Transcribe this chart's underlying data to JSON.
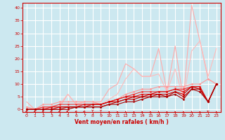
{
  "xlabel": "Vent moyen/en rafales ( km/h )",
  "background_color": "#cce8f0",
  "grid_color": "#ffffff",
  "xlim": [
    -0.5,
    23.5
  ],
  "ylim": [
    -1,
    42
  ],
  "yticks": [
    0,
    5,
    10,
    15,
    20,
    25,
    30,
    35,
    40
  ],
  "xticks": [
    0,
    1,
    2,
    3,
    4,
    5,
    6,
    7,
    8,
    9,
    10,
    11,
    12,
    13,
    14,
    15,
    16,
    17,
    18,
    19,
    20,
    21,
    22,
    23
  ],
  "lines": [
    {
      "x": [
        0,
        1,
        2,
        3,
        4,
        5,
        6,
        7,
        8,
        9,
        10,
        11,
        12,
        13,
        14,
        15,
        16,
        17,
        18,
        19,
        20,
        21,
        22,
        23
      ],
      "y": [
        3,
        0,
        1,
        0,
        1,
        6,
        2,
        3,
        3,
        3,
        8,
        10,
        18,
        16,
        13,
        13,
        24,
        7,
        25,
        4,
        41,
        27,
        12,
        10
      ],
      "color": "#ffaaaa",
      "lw": 0.8,
      "marker": null
    },
    {
      "x": [
        0,
        1,
        2,
        3,
        4,
        5,
        6,
        7,
        8,
        9,
        10,
        11,
        12,
        13,
        14,
        15,
        16,
        17,
        18,
        19,
        20,
        21,
        22,
        23
      ],
      "y": [
        1,
        0,
        0,
        1,
        2,
        6,
        2,
        3,
        3,
        2,
        4,
        6,
        12,
        16,
        13,
        13,
        14,
        7,
        16,
        4,
        23,
        27,
        13,
        24
      ],
      "color": "#ffbbbb",
      "lw": 0.8,
      "marker": null
    },
    {
      "x": [
        0,
        1,
        2,
        3,
        4,
        5,
        6,
        7,
        8,
        9,
        10,
        11,
        12,
        13,
        14,
        15,
        16,
        17,
        18,
        19,
        20,
        21,
        22,
        23
      ],
      "y": [
        1,
        0,
        2,
        2,
        3,
        3,
        3,
        3,
        3,
        2,
        3,
        4,
        6,
        7,
        8,
        8,
        9,
        9,
        9,
        9,
        10,
        10,
        12,
        10
      ],
      "color": "#ff9999",
      "lw": 0.8,
      "marker": "D",
      "markersize": 1.5
    },
    {
      "x": [
        0,
        1,
        2,
        3,
        4,
        5,
        6,
        7,
        8,
        9,
        10,
        11,
        12,
        13,
        14,
        15,
        16,
        17,
        18,
        19,
        20,
        21,
        22,
        23
      ],
      "y": [
        0,
        0,
        1,
        1,
        2,
        2,
        2,
        2,
        2,
        2,
        3,
        4,
        5,
        6,
        7,
        7,
        7,
        7,
        8,
        8,
        9,
        9,
        3,
        10
      ],
      "color": "#ee3333",
      "lw": 0.8,
      "marker": "D",
      "markersize": 1.5
    },
    {
      "x": [
        0,
        1,
        2,
        3,
        4,
        5,
        6,
        7,
        8,
        9,
        10,
        11,
        12,
        13,
        14,
        15,
        16,
        17,
        18,
        19,
        20,
        21,
        22,
        23
      ],
      "y": [
        0,
        0,
        0,
        1,
        1,
        1,
        1,
        2,
        2,
        2,
        3,
        4,
        5,
        5,
        6,
        6,
        7,
        7,
        8,
        7,
        9,
        9,
        3,
        10
      ],
      "color": "#dd1111",
      "lw": 0.8,
      "marker": "D",
      "markersize": 1.5
    },
    {
      "x": [
        0,
        1,
        2,
        3,
        4,
        5,
        6,
        7,
        8,
        9,
        10,
        11,
        12,
        13,
        14,
        15,
        16,
        17,
        18,
        19,
        20,
        21,
        22,
        23
      ],
      "y": [
        0,
        0,
        0,
        0,
        1,
        1,
        1,
        1,
        2,
        2,
        3,
        3,
        4,
        5,
        5,
        6,
        6,
        6,
        7,
        6,
        9,
        8,
        3,
        10
      ],
      "color": "#cc0000",
      "lw": 0.8,
      "marker": "D",
      "markersize": 1.5
    },
    {
      "x": [
        0,
        1,
        2,
        3,
        4,
        5,
        6,
        7,
        8,
        9,
        10,
        11,
        12,
        13,
        14,
        15,
        16,
        17,
        18,
        19,
        20,
        21,
        22,
        23
      ],
      "y": [
        0,
        0,
        0,
        0,
        0,
        1,
        1,
        1,
        1,
        1,
        2,
        3,
        4,
        4,
        5,
        5,
        6,
        5,
        7,
        5,
        8,
        8,
        3,
        10
      ],
      "color": "#bb0000",
      "lw": 0.8,
      "marker": "D",
      "markersize": 1.5
    },
    {
      "x": [
        0,
        1,
        2,
        3,
        4,
        5,
        6,
        7,
        8,
        9,
        10,
        11,
        12,
        13,
        14,
        15,
        16,
        17,
        18,
        19,
        20,
        21,
        22,
        23
      ],
      "y": [
        0,
        0,
        0,
        0,
        0,
        0,
        1,
        1,
        1,
        1,
        2,
        2,
        3,
        3,
        4,
        5,
        5,
        5,
        6,
        4,
        8,
        7,
        3,
        10
      ],
      "color": "#aa0000",
      "lw": 0.8,
      "marker": "D",
      "markersize": 1.5
    }
  ],
  "arrow_angles": [
    225,
    225,
    225,
    225,
    225,
    180,
    225,
    225,
    270,
    270,
    90,
    90,
    90,
    90,
    90,
    90,
    90,
    90,
    90,
    90,
    90,
    90,
    135,
    90
  ],
  "tick_color": "#cc0000",
  "tick_fontsize": 4.5,
  "xlabel_fontsize": 5.5,
  "spine_color": "#cc0000"
}
